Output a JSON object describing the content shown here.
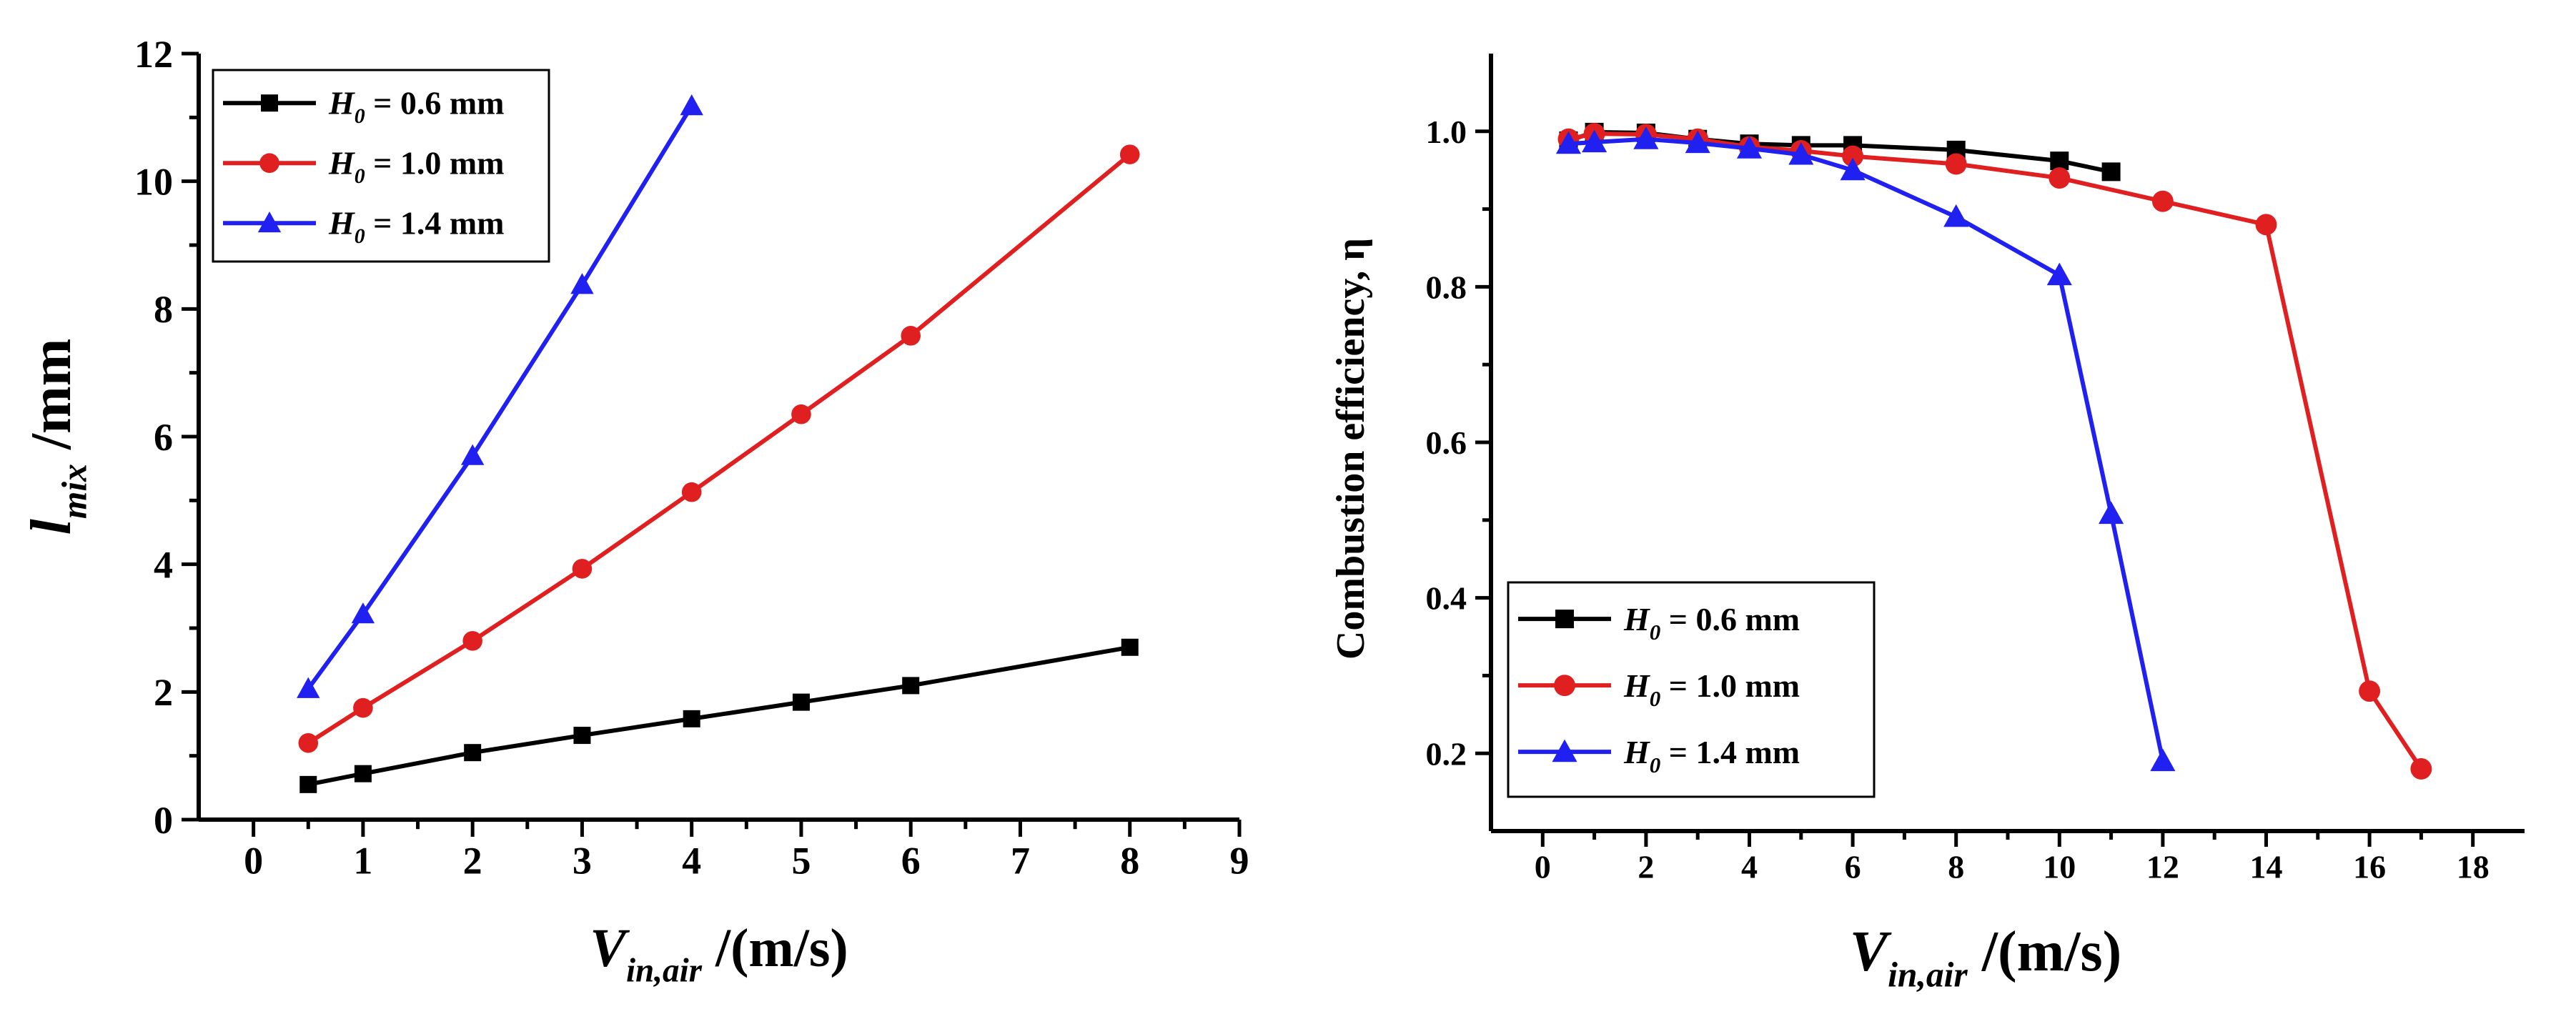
{
  "chart_data": [
    {
      "type": "line",
      "xlabel_main": "V",
      "xlabel_sub": "in,air",
      "xlabel_unit": "/(m/s)",
      "ylabel_main": "l",
      "ylabel_sub": "mix",
      "ylabel_unit": "/mm",
      "xlim": [
        -0.5,
        9
      ],
      "ylim": [
        0,
        12
      ],
      "xticks": [
        0,
        1,
        2,
        3,
        4,
        5,
        6,
        7,
        8,
        9
      ],
      "yticks": [
        0,
        2,
        4,
        6,
        8,
        10,
        12
      ],
      "legend_position": "top-left",
      "series": [
        {
          "name": "H0 = 0.6 mm",
          "label_main": "H",
          "label_sub": "0",
          "label_value": "= 0.6 mm",
          "color": "#000000",
          "marker": "square",
          "x": [
            0.5,
            1,
            2,
            3,
            4,
            5,
            6,
            8
          ],
          "y": [
            0.55,
            0.72,
            1.05,
            1.32,
            1.58,
            1.84,
            2.1,
            2.7
          ]
        },
        {
          "name": "H0 = 1.0 mm",
          "label_main": "H",
          "label_sub": "0",
          "label_value": "= 1.0 mm",
          "color": "#e02020",
          "marker": "circle",
          "x": [
            0.5,
            1,
            2,
            3,
            4,
            5,
            6,
            8
          ],
          "y": [
            1.2,
            1.75,
            2.8,
            3.93,
            5.13,
            6.35,
            7.58,
            10.42
          ]
        },
        {
          "name": "H0 = 1.4 mm",
          "label_main": "H",
          "label_sub": "0",
          "label_value": "= 1.4 mm",
          "color": "#2020f0",
          "marker": "triangle",
          "x": [
            0.5,
            1,
            2,
            3,
            4
          ],
          "y": [
            2.05,
            3.22,
            5.7,
            8.38,
            11.18
          ]
        }
      ]
    },
    {
      "type": "line",
      "xlabel_main": "V",
      "xlabel_sub": "in,air",
      "xlabel_unit": "/(m/s)",
      "ylabel_main": "Combustion efficiency, η",
      "xlim": [
        -1,
        19
      ],
      "ylim": [
        0.1,
        1.1
      ],
      "xticks": [
        0,
        2,
        4,
        6,
        8,
        10,
        12,
        14,
        16,
        18
      ],
      "yticks": [
        0.2,
        0.4,
        0.6,
        0.8,
        1.0
      ],
      "ytick_labels": [
        "0.2",
        "0.4",
        "0.6",
        "0.8",
        "1.0"
      ],
      "legend_position": "bottom-left",
      "series": [
        {
          "name": "H0 = 0.6 mm",
          "label_main": "H",
          "label_sub": "0",
          "label_value": "= 0.6 mm",
          "color": "#000000",
          "marker": "square",
          "x": [
            0.5,
            1,
            2,
            3,
            4,
            5,
            6,
            8,
            10,
            11
          ],
          "y": [
            0.988,
            0.999,
            0.998,
            0.99,
            0.984,
            0.982,
            0.982,
            0.976,
            0.962,
            0.948
          ]
        },
        {
          "name": "H0 = 1.0 mm",
          "label_main": "H",
          "label_sub": "0",
          "label_value": "= 1.0 mm",
          "color": "#e02020",
          "marker": "circle",
          "x": [
            0.5,
            1,
            2,
            3,
            4,
            5,
            6,
            8,
            10,
            12,
            14,
            16,
            17
          ],
          "y": [
            0.99,
            0.997,
            0.996,
            0.99,
            0.98,
            0.975,
            0.968,
            0.958,
            0.94,
            0.91,
            0.88,
            0.28,
            0.18
          ]
        },
        {
          "name": "H0 = 1.4 mm",
          "label_main": "H",
          "label_sub": "0",
          "label_value": "= 1.4 mm",
          "color": "#2020f0",
          "marker": "triangle",
          "x": [
            0.5,
            1,
            2,
            3,
            4,
            5,
            6,
            8,
            10,
            11,
            12
          ],
          "y": [
            0.984,
            0.986,
            0.99,
            0.985,
            0.978,
            0.97,
            0.95,
            0.89,
            0.815,
            0.508,
            0.19
          ]
        }
      ]
    }
  ]
}
